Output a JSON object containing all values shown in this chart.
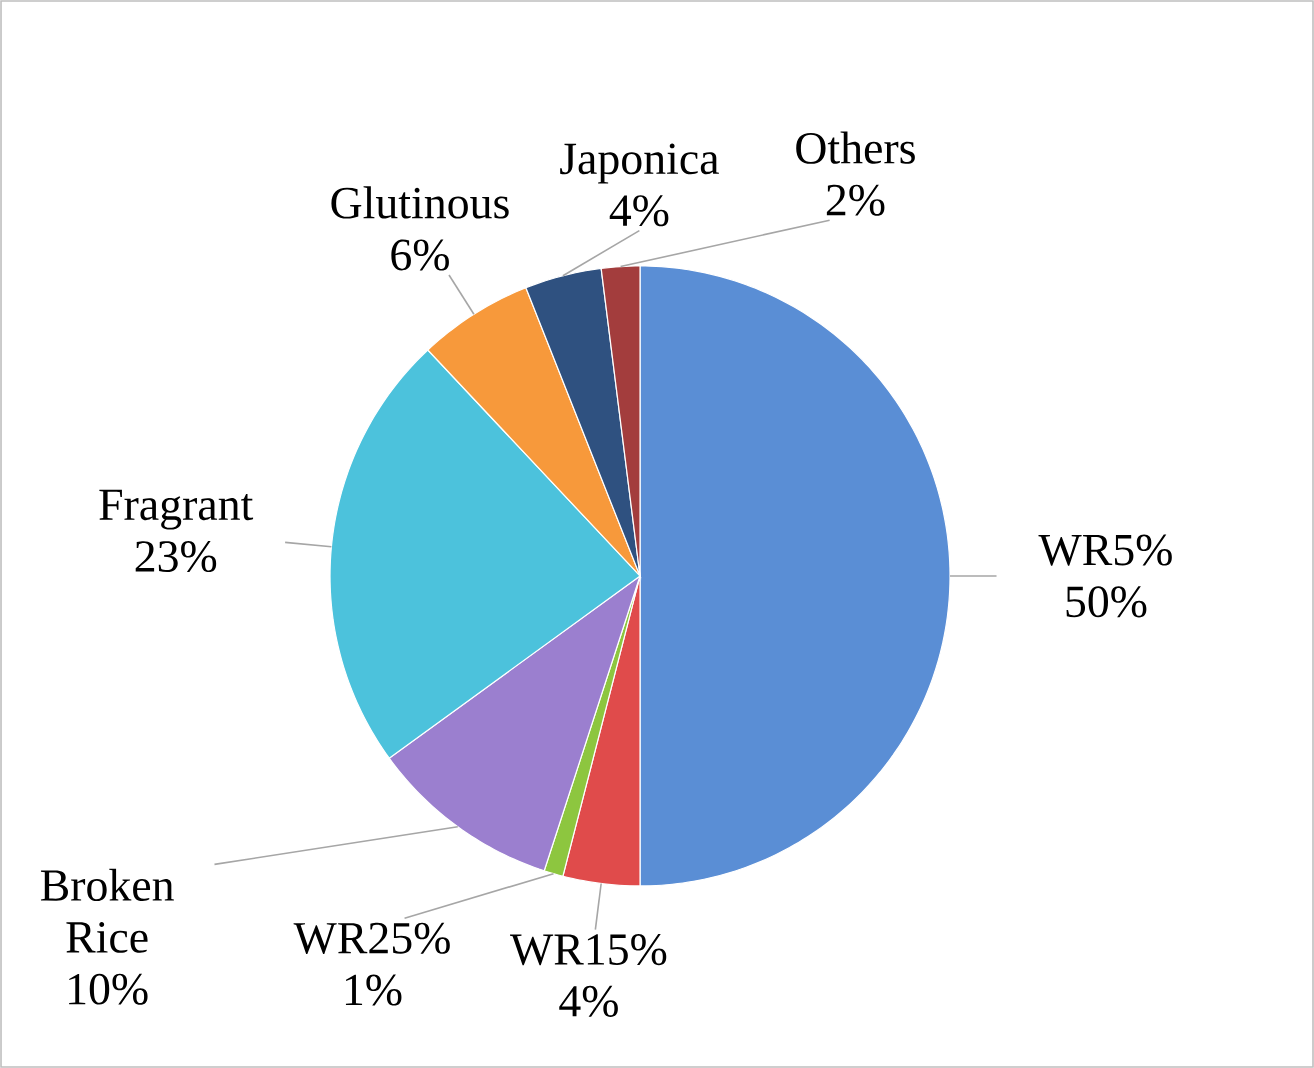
{
  "chart_data": {
    "type": "pie",
    "categories": [
      "WR5%",
      "WR15%",
      "WR25%",
      "Broken Rice",
      "Fragrant",
      "Glutinous",
      "Japonica",
      "Others"
    ],
    "values": [
      50,
      4,
      1,
      10,
      23,
      6,
      4,
      2
    ],
    "value_labels": [
      "50%",
      "4%",
      "1%",
      "10%",
      "23%",
      "6%",
      "4%",
      "2%"
    ],
    "colors": [
      "#5a8ed5",
      "#e04b4b",
      "#8dc63f",
      "#9b7fcf",
      "#4cc2dc",
      "#f7993b",
      "#2f5180",
      "#a33d3d"
    ]
  }
}
